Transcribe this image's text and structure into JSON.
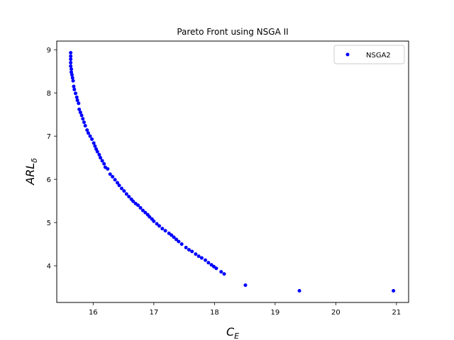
{
  "chart_data": {
    "type": "scatter",
    "title": "Pareto Front using NSGA II",
    "xlabel": {
      "main": "C",
      "sub": "E"
    },
    "ylabel": {
      "main": "ARL",
      "sub": "δ"
    },
    "xlim": [
      15.4,
      21.2
    ],
    "ylim": [
      3.15,
      9.2
    ],
    "xticks": [
      16,
      17,
      18,
      19,
      20,
      21
    ],
    "yticks": [
      4,
      5,
      6,
      7,
      8,
      9
    ],
    "grid": false,
    "legend_position": "top-right",
    "series": [
      {
        "name": "NSGA2",
        "color": "#0000ff",
        "marker": "circle",
        "points": [
          [
            15.63,
            8.93
          ],
          [
            15.63,
            8.85
          ],
          [
            15.63,
            8.78
          ],
          [
            15.63,
            8.7
          ],
          [
            15.63,
            8.62
          ],
          [
            15.64,
            8.55
          ],
          [
            15.64,
            8.48
          ],
          [
            15.65,
            8.42
          ],
          [
            15.66,
            8.35
          ],
          [
            15.67,
            8.28
          ],
          [
            15.68,
            8.15
          ],
          [
            15.69,
            8.08
          ],
          [
            15.71,
            7.99
          ],
          [
            15.73,
            7.9
          ],
          [
            15.74,
            7.83
          ],
          [
            15.76,
            7.76
          ],
          [
            15.77,
            7.62
          ],
          [
            15.79,
            7.55
          ],
          [
            15.81,
            7.48
          ],
          [
            15.83,
            7.4
          ],
          [
            15.85,
            7.32
          ],
          [
            15.87,
            7.24
          ],
          [
            15.9,
            7.14
          ],
          [
            15.92,
            7.07
          ],
          [
            15.95,
            7.0
          ],
          [
            15.98,
            6.93
          ],
          [
            16.01,
            6.84
          ],
          [
            16.03,
            6.77
          ],
          [
            16.05,
            6.7
          ],
          [
            16.07,
            6.64
          ],
          [
            16.1,
            6.57
          ],
          [
            16.12,
            6.5
          ],
          [
            16.15,
            6.43
          ],
          [
            16.18,
            6.36
          ],
          [
            16.2,
            6.28
          ],
          [
            16.24,
            6.24
          ],
          [
            16.28,
            6.12
          ],
          [
            16.32,
            6.06
          ],
          [
            16.36,
            5.99
          ],
          [
            16.4,
            5.92
          ],
          [
            16.43,
            5.86
          ],
          [
            16.47,
            5.79
          ],
          [
            16.51,
            5.73
          ],
          [
            16.55,
            5.66
          ],
          [
            16.59,
            5.6
          ],
          [
            16.63,
            5.54
          ],
          [
            16.66,
            5.49
          ],
          [
            16.7,
            5.44
          ],
          [
            16.74,
            5.4
          ],
          [
            16.78,
            5.34
          ],
          [
            16.82,
            5.28
          ],
          [
            16.86,
            5.23
          ],
          [
            16.9,
            5.18
          ],
          [
            16.93,
            5.13
          ],
          [
            16.97,
            5.08
          ],
          [
            17.0,
            5.03
          ],
          [
            17.05,
            4.97
          ],
          [
            17.09,
            4.92
          ],
          [
            17.14,
            4.86
          ],
          [
            17.19,
            4.81
          ],
          [
            17.25,
            4.75
          ],
          [
            17.29,
            4.71
          ],
          [
            17.33,
            4.66
          ],
          [
            17.37,
            4.61
          ],
          [
            17.41,
            4.56
          ],
          [
            17.46,
            4.5
          ],
          [
            17.53,
            4.42
          ],
          [
            17.58,
            4.37
          ],
          [
            17.63,
            4.33
          ],
          [
            17.69,
            4.27
          ],
          [
            17.74,
            4.22
          ],
          [
            17.79,
            4.18
          ],
          [
            17.85,
            4.13
          ],
          [
            17.9,
            4.07
          ],
          [
            17.95,
            4.02
          ],
          [
            17.99,
            3.98
          ],
          [
            18.03,
            3.94
          ],
          [
            18.11,
            3.86
          ],
          [
            18.16,
            3.81
          ],
          [
            18.51,
            3.55
          ],
          [
            19.4,
            3.42
          ],
          [
            20.95,
            3.42
          ]
        ]
      }
    ]
  }
}
